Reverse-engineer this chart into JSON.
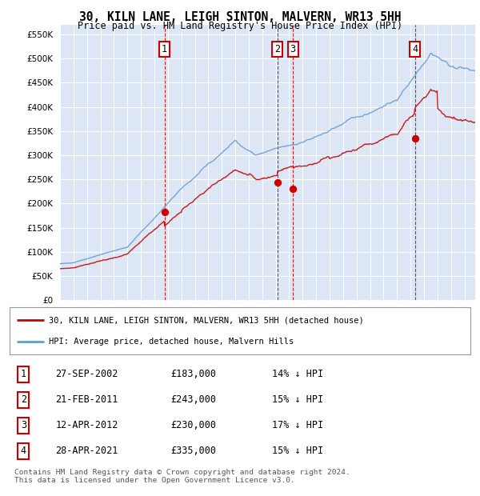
{
  "title": "30, KILN LANE, LEIGH SINTON, MALVERN, WR13 5HH",
  "subtitle": "Price paid vs. HM Land Registry's House Price Index (HPI)",
  "ylim": [
    0,
    570000
  ],
  "yticks": [
    0,
    50000,
    100000,
    150000,
    200000,
    250000,
    300000,
    350000,
    400000,
    450000,
    500000,
    550000
  ],
  "ytick_labels": [
    "£0",
    "£50K",
    "£100K",
    "£150K",
    "£200K",
    "£250K",
    "£300K",
    "£350K",
    "£400K",
    "£450K",
    "£500K",
    "£550K"
  ],
  "plot_bg_color": "#dce6f5",
  "grid_color": "#ffffff",
  "legend_label_red": "30, KILN LANE, LEIGH SINTON, MALVERN, WR13 5HH (detached house)",
  "legend_label_blue": "HPI: Average price, detached house, Malvern Hills",
  "transactions": [
    {
      "num": 1,
      "date": "27-SEP-2002",
      "price": 183000,
      "hpi_diff": "14% ↓ HPI",
      "year": 2002.75
    },
    {
      "num": 2,
      "date": "21-FEB-2011",
      "price": 243000,
      "hpi_diff": "15% ↓ HPI",
      "year": 2011.13
    },
    {
      "num": 3,
      "date": "12-APR-2012",
      "price": 230000,
      "hpi_diff": "17% ↓ HPI",
      "year": 2012.28
    },
    {
      "num": 4,
      "date": "28-APR-2021",
      "price": 335000,
      "hpi_diff": "15% ↓ HPI",
      "year": 2021.32
    }
  ],
  "footer": "Contains HM Land Registry data © Crown copyright and database right 2024.\nThis data is licensed under the Open Government Licence v3.0.",
  "red_color": "#cc0000",
  "blue_color": "#6699cc",
  "xlim_start": 1995,
  "xlim_end": 2025.8
}
